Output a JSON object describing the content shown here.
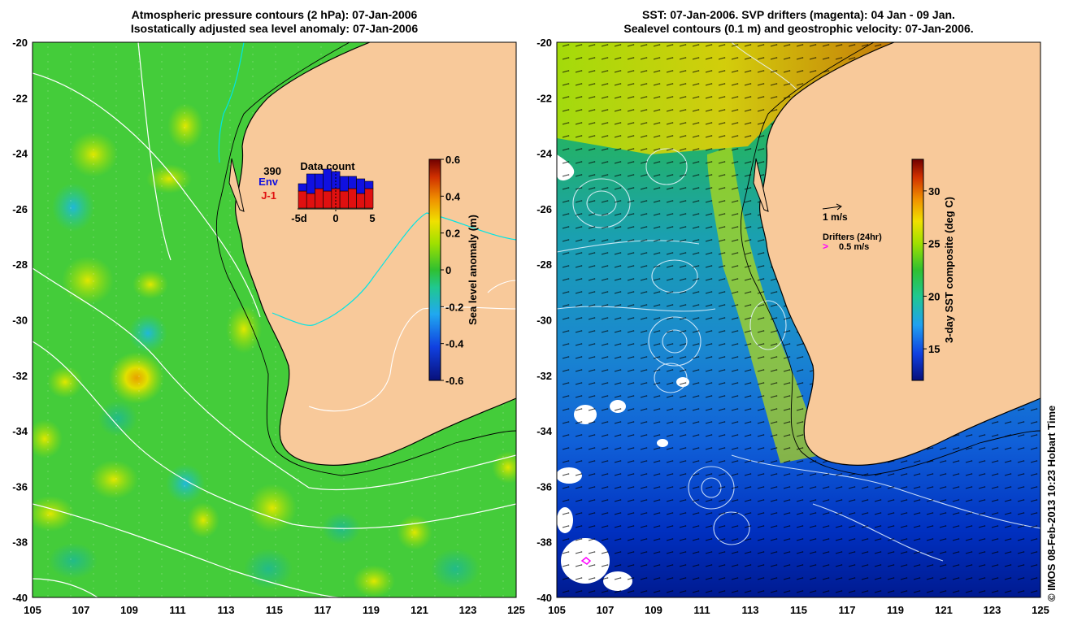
{
  "left_map": {
    "title_line1": "Atmospheric pressure contours (2 hPa): 07-Jan-2006",
    "title_line2": "Isostatically adjusted sea level anomaly: 07-Jan-2006",
    "colorbar_label": "Sea level anomaly (m)",
    "colorbar_min": -0.6,
    "colorbar_max": 0.6,
    "colorbar_ticks": [
      "0.6",
      "0.4",
      "0.2",
      "0",
      "-0.2",
      "-0.4",
      "-0.6"
    ],
    "data_count": {
      "title": "Data count",
      "total": "390",
      "label_env": "Env",
      "label_j1": "J-1",
      "env_color": "#1010e0",
      "j1_color": "#e01010",
      "x_labels": [
        "-5d",
        "0",
        "5"
      ],
      "env_values": [
        3,
        8,
        6,
        9,
        7,
        6,
        5,
        6,
        3
      ],
      "j1_values": [
        7,
        6,
        8,
        7,
        8,
        7,
        8,
        6,
        8
      ]
    }
  },
  "right_map": {
    "title_line1": "SST: 07-Jan-2006. SVP drifters (magenta): 04 Jan - 09 Jan.",
    "title_line2": "Sealevel contours (0.1 m) and geostrophic velocity: 07-Jan-2006.",
    "colorbar_label": "3-day SST composite (deg C)",
    "colorbar_min": 12,
    "colorbar_max": 33,
    "colorbar_ticks": [
      "30",
      "25",
      "20",
      "15"
    ],
    "velocity_scale_label": "1 m/s",
    "drifters_label": "Drifters (24hr)",
    "drifters_scale_label": "0.5 m/s",
    "drifter_symbol": ">"
  },
  "axes": {
    "lon_labels": [
      "105",
      "107",
      "109",
      "111",
      "113",
      "115",
      "117",
      "119",
      "121",
      "123",
      "125"
    ],
    "lat_labels": [
      "-20",
      "-22",
      "-24",
      "-26",
      "-28",
      "-30",
      "-32",
      "-34",
      "-36",
      "-38",
      "-40"
    ],
    "lon_range": [
      105,
      125
    ],
    "lat_range": [
      -40,
      -20
    ]
  },
  "colors": {
    "land": "#f8c99a",
    "ocean_green": "#33cc33",
    "cyan_contour": "#00e5e5",
    "drifter": "#ff00ff"
  },
  "credit": "© IMOS 08-Feb-2013 10:23 Hobart Time"
}
